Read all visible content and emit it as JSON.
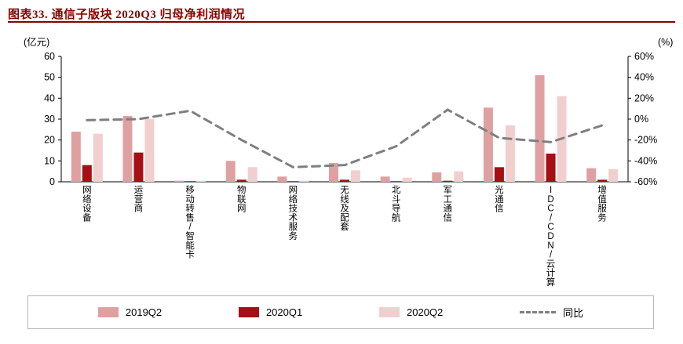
{
  "title": "图表33. 通信子版块 2020Q3 归母净利润情况",
  "colors": {
    "title": "#8B0000",
    "title_rule": "#8B0000",
    "axis": "#000000",
    "series_2019q2": "#DFA0A2",
    "series_2020q1": "#A50F15",
    "series_2020q2": "#F2CFCF",
    "yoy_line": "#7F7F7F"
  },
  "chart_data": {
    "type": "bar",
    "subtype": "grouped bars with dashed yoy line on secondary axis",
    "title": "通信子版块 2020Q3 归母净利润情况",
    "xlabel": "",
    "ylabel_left": "(亿元)",
    "ylabel_right": "(%)",
    "left_axis": {
      "min": 0,
      "max": 60,
      "ticks": [
        0,
        10,
        20,
        30,
        40,
        50,
        60
      ]
    },
    "right_axis": {
      "min": -60,
      "max": 60,
      "ticks": [
        -60,
        -40,
        -20,
        0,
        20,
        40,
        60
      ],
      "suffix": "%"
    },
    "grid": "off",
    "legend_position": "bottom",
    "categories": [
      "网络设备",
      "运营商",
      "移动转售/智能卡",
      "物联网",
      "网络技术服务",
      "无线及配套",
      "北斗导航",
      "军工通信",
      "光通信",
      "IDC/CDN/云计算",
      "增值服务"
    ],
    "series": [
      {
        "name": "2019Q2",
        "color": "#DFA0A2",
        "values": [
          24,
          31.5,
          0.5,
          10,
          2.5,
          9,
          2.5,
          4.5,
          35.5,
          51,
          6.5
        ]
      },
      {
        "name": "2020Q1",
        "color": "#A50F15",
        "values": [
          8,
          14,
          0.2,
          1,
          0.3,
          1,
          0.3,
          0.5,
          7,
          13.5,
          1
        ]
      },
      {
        "name": "2020Q2",
        "color": "#F2CFCF",
        "values": [
          23,
          30,
          0.5,
          7,
          0.5,
          5.5,
          2,
          5,
          27,
          41,
          6
        ]
      }
    ],
    "line": {
      "name": "同比",
      "color": "#7F7F7F",
      "style": "dashed",
      "axis": "right",
      "values": [
        -1,
        0,
        8,
        -20,
        -46,
        -44,
        -26,
        9,
        -18,
        -22,
        -6
      ]
    }
  }
}
